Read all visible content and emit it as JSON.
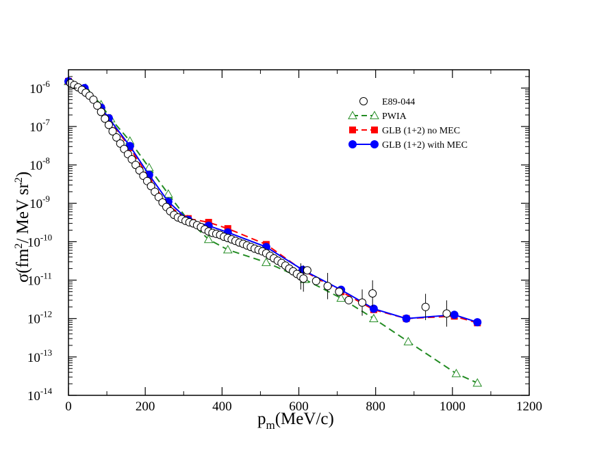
{
  "chart_data": {
    "type": "scatter",
    "title": "",
    "xlabel": "p_m (MeV/c)",
    "ylabel": "σ(fm²/ MeV sr²)",
    "x_axis": {
      "label_base": "p",
      "label_sub": "m",
      "label_rest": "(MeV/c)",
      "xlim": [
        0,
        1200
      ],
      "ticks": [
        0,
        200,
        400,
        600,
        800,
        1000,
        1200
      ],
      "tick_labels": [
        "0",
        "200",
        "400",
        "600",
        "800",
        "1000",
        "1200"
      ]
    },
    "y_axis": {
      "scale": "log",
      "label_parts": [
        "σ(fm",
        "2",
        "/ MeV sr",
        "2",
        ")"
      ],
      "ylim": [
        1e-14,
        3e-06
      ],
      "ticks": [
        -14,
        -13,
        -12,
        -11,
        -10,
        -9,
        -8,
        -7,
        -6
      ],
      "tick_label_base": "10",
      "tick_label_exponents": [
        "-14",
        "-13",
        "-12",
        "-11",
        "-10",
        "-9",
        "-8",
        "-7",
        "-6"
      ]
    },
    "legend_position": "top-right",
    "series": [
      {
        "name": "E89-044",
        "style": "open-circle",
        "color": "#000000",
        "points": [
          [
            5,
            1.35e-06
          ],
          [
            15,
            1.2e-06
          ],
          [
            25,
            1.05e-06
          ],
          [
            35,
            9e-07
          ],
          [
            45,
            7.6e-07
          ],
          [
            55,
            6.3e-07
          ],
          [
            65,
            5e-07
          ],
          [
            75,
            3.5e-07
          ],
          [
            85,
            2.4e-07
          ],
          [
            95,
            1.6e-07
          ],
          [
            105,
            1.1e-07
          ],
          [
            115,
            7.5e-08
          ],
          [
            125,
            5.2e-08
          ],
          [
            135,
            3.6e-08
          ],
          [
            145,
            2.6e-08
          ],
          [
            155,
            1.9e-08
          ],
          [
            165,
            1.4e-08
          ],
          [
            175,
            1e-08
          ],
          [
            185,
            7.2e-09
          ],
          [
            195,
            5.2e-09
          ],
          [
            205,
            3.8e-09
          ],
          [
            215,
            2.8e-09
          ],
          [
            225,
            2e-09
          ],
          [
            235,
            1.45e-09
          ],
          [
            245,
            1.05e-09
          ],
          [
            255,
            8e-10
          ],
          [
            265,
            6.2e-10
          ],
          [
            275,
            5e-10
          ],
          [
            285,
            4.3e-10
          ],
          [
            295,
            3.9e-10
          ],
          [
            305,
            3.5e-10
          ],
          [
            315,
            3.2e-10
          ],
          [
            325,
            3e-10
          ],
          [
            335,
            2.7e-10
          ],
          [
            345,
            2.4e-10
          ],
          [
            355,
            2.1e-10
          ],
          [
            365,
            1.85e-10
          ],
          [
            375,
            1.7e-10
          ],
          [
            385,
            1.6e-10
          ],
          [
            395,
            1.5e-10
          ],
          [
            405,
            1.35e-10
          ],
          [
            415,
            1.25e-10
          ],
          [
            425,
            1.15e-10
          ],
          [
            435,
            1.05e-10
          ],
          [
            445,
            9.5e-11
          ],
          [
            455,
            8.8e-11
          ],
          [
            465,
            8e-11
          ],
          [
            475,
            7.3e-11
          ],
          [
            485,
            6.6e-11
          ],
          [
            495,
            6.1e-11
          ],
          [
            505,
            5.6e-11
          ],
          [
            515,
            5e-11
          ],
          [
            525,
            4.3e-11
          ],
          [
            535,
            3.7e-11
          ],
          [
            545,
            3.2e-11
          ],
          [
            555,
            2.8e-11
          ],
          [
            565,
            2.4e-11
          ],
          [
            575,
            2e-11
          ],
          [
            585,
            1.7e-11
          ],
          [
            595,
            1.45e-11
          ],
          [
            605,
            1.25e-11
          ],
          [
            612,
            1.1e-11
          ],
          [
            622,
            1.8e-11
          ],
          [
            645,
            9.5e-12
          ],
          [
            675,
            7e-12
          ],
          [
            705,
            5e-12
          ],
          [
            730,
            3e-12
          ],
          [
            765,
            2.6e-12
          ],
          [
            792,
            4.5e-12
          ],
          [
            930,
            2e-12
          ],
          [
            985,
            1.35e-12
          ]
        ]
      },
      {
        "name": "PWIA",
        "style": "dashed-open-triangle",
        "color": "#228b22",
        "points": [
          [
            0,
            1.5e-06
          ],
          [
            45,
            1e-06
          ],
          [
            85,
            3.7e-07
          ],
          [
            110,
            1.6e-07
          ],
          [
            160,
            4.2e-08
          ],
          [
            210,
            8.5e-09
          ],
          [
            260,
            1.75e-09
          ],
          [
            310,
            3.8e-10
          ],
          [
            365,
            1.15e-10
          ],
          [
            415,
            6.2e-11
          ],
          [
            515,
            2.9e-11
          ],
          [
            615,
            1.05e-11
          ],
          [
            710,
            3.4e-12
          ],
          [
            795,
            1e-12
          ],
          [
            885,
            2.5e-13
          ],
          [
            1010,
            3.7e-14
          ],
          [
            1065,
            2.1e-14
          ]
        ]
      },
      {
        "name": "GLB (1+2) no MEC",
        "style": "dashed-filled-square",
        "color": "#ff0000",
        "points": [
          [
            0,
            1.5e-06
          ],
          [
            40,
            9.5e-07
          ],
          [
            85,
            3e-07
          ],
          [
            105,
            1.6e-07
          ],
          [
            160,
            2.8e-08
          ],
          [
            210,
            4.5e-09
          ],
          [
            260,
            8.5e-10
          ],
          [
            312,
            4e-10
          ],
          [
            365,
            3.2e-10
          ],
          [
            415,
            2.2e-10
          ],
          [
            515,
            8.5e-11
          ],
          [
            610,
            1.8e-11
          ],
          [
            710,
            5e-12
          ],
          [
            795,
            1.7e-12
          ],
          [
            880,
            1e-12
          ],
          [
            1005,
            1.15e-12
          ],
          [
            1065,
            7.7e-13
          ]
        ]
      },
      {
        "name": "GLB (1+2) with MEC",
        "style": "solid-filled-circle",
        "color": "#0000ff",
        "points": [
          [
            0,
            1.5e-06
          ],
          [
            42,
            1e-06
          ],
          [
            85,
            3.1e-07
          ],
          [
            105,
            1.65e-07
          ],
          [
            160,
            3.1e-08
          ],
          [
            210,
            5.5e-09
          ],
          [
            260,
            1.1e-09
          ],
          [
            312,
            3.7e-10
          ],
          [
            365,
            2.6e-10
          ],
          [
            415,
            1.75e-10
          ],
          [
            515,
            7.3e-11
          ],
          [
            610,
            1.85e-11
          ],
          [
            710,
            5.6e-12
          ],
          [
            795,
            1.8e-12
          ],
          [
            880,
            1e-12
          ],
          [
            1005,
            1.25e-12
          ],
          [
            1065,
            8e-13
          ]
        ]
      }
    ]
  }
}
